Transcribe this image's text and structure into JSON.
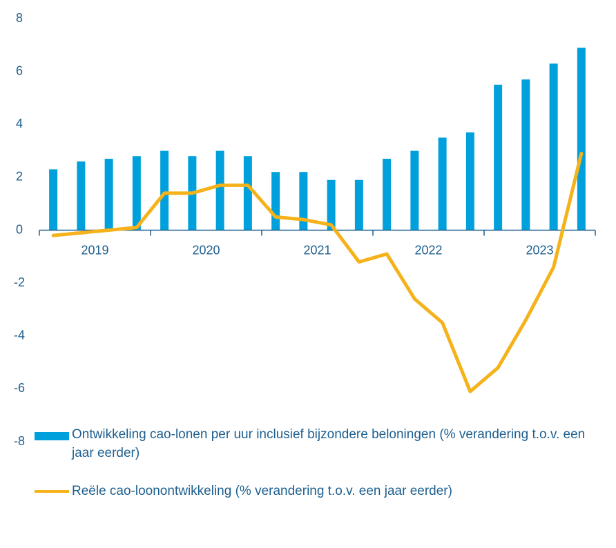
{
  "chart_data": {
    "type": "bar_line",
    "categories": [
      "2019",
      null,
      null,
      null,
      "2020",
      null,
      null,
      null,
      "2021",
      null,
      null,
      null,
      "2022",
      null,
      null,
      null,
      "2023",
      null,
      null,
      null
    ],
    "series": [
      {
        "name": "Ontwikkeling cao-lonen per uur inclusief bijzondere beloningen (% verandering t.o.v. een jaar eerder)",
        "type": "bar",
        "color": "#00a0dc",
        "values": [
          2.3,
          2.6,
          2.7,
          2.8,
          3.0,
          2.8,
          3.0,
          2.8,
          2.2,
          2.2,
          1.9,
          1.9,
          2.7,
          3.0,
          3.5,
          3.7,
          5.5,
          5.7,
          6.3,
          6.9
        ]
      },
      {
        "name": "Reële cao-loonontwikkeling (% verandering t.o.v. een jaar eerder)",
        "type": "line",
        "color": "#f5b21a",
        "values": [
          -0.2,
          -0.1,
          0.0,
          0.1,
          1.4,
          1.4,
          1.7,
          1.7,
          0.5,
          0.4,
          0.2,
          -1.2,
          -0.9,
          -2.6,
          -3.5,
          -6.1,
          -5.2,
          -3.4,
          -1.4,
          2.9
        ]
      }
    ],
    "ylim": [
      -8,
      8
    ],
    "yticks": [
      -8,
      -6,
      -4,
      -2,
      0,
      2,
      4,
      6,
      8
    ],
    "grid": false
  }
}
